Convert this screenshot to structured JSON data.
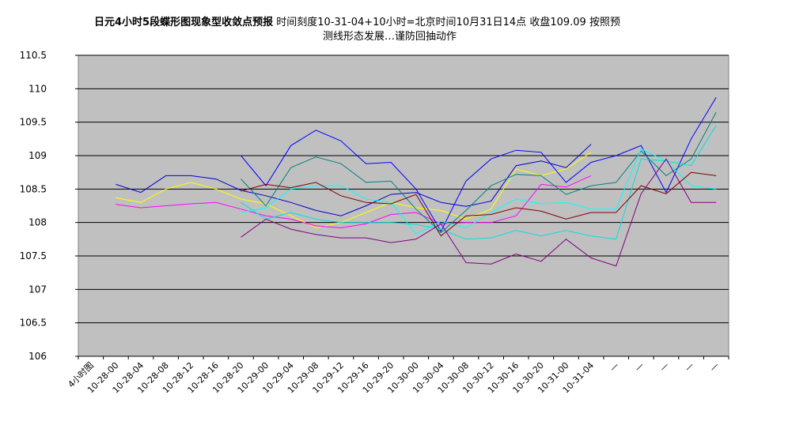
{
  "chart_data": {
    "type": "line",
    "title_bold": "日元4小时5段蝶形图现象型收敛点预报",
    "title_rest": " 时间刻度10-31-04+10小时=北京时间10月31日14点 收盘109.09 按照预",
    "title_line2": "测线形态发展…谨防回抽动作",
    "ylim": [
      106,
      110.5
    ],
    "yticks": [
      "110.5",
      "110",
      "109.5",
      "109",
      "108.5",
      "108",
      "107.5",
      "107",
      "106.5",
      "106"
    ],
    "grid": true,
    "plot_background": "#c0c0c0",
    "categories": [
      "4小时图",
      "10-28-00",
      "10-28-04",
      "10-28-08",
      "10-28-12",
      "10-28-16",
      "10-28-20",
      "10-29-00",
      "10-29-04",
      "10-29-08",
      "10-29-12",
      "10-29-16",
      "10-29-20",
      "10-30-00",
      "10-30-04",
      "10-30-08",
      "10-30-12",
      "10-30-16",
      "10-30-20",
      "10-31-00",
      "10-31-04",
      "—",
      "—",
      "—",
      "—",
      "—"
    ],
    "series": [
      {
        "color": "#0000cc",
        "values": [
          null,
          108.57,
          108.45,
          108.7,
          108.7,
          108.65,
          108.48,
          108.4,
          108.3,
          108.18,
          108.1,
          108.25,
          108.42,
          108.45,
          108.3,
          108.24,
          108.32,
          108.85,
          108.92,
          108.82,
          109.17,
          null,
          null,
          null,
          null,
          null
        ]
      },
      {
        "color": "#ffff00",
        "values": [
          null,
          108.37,
          108.3,
          108.5,
          108.6,
          108.5,
          108.35,
          108.28,
          108.1,
          107.92,
          108.0,
          108.15,
          108.3,
          108.22,
          108.18,
          108.05,
          108.2,
          108.8,
          108.7,
          108.8,
          109.05,
          null,
          null,
          null,
          null,
          null
        ]
      },
      {
        "color": "#ff00ff",
        "values": [
          null,
          108.27,
          108.22,
          108.25,
          108.28,
          108.3,
          108.2,
          108.1,
          108.05,
          107.95,
          107.92,
          107.98,
          108.12,
          108.15,
          107.98,
          108.0,
          108.0,
          108.1,
          108.57,
          108.53,
          108.7,
          null,
          null,
          null,
          null,
          null
        ]
      },
      {
        "color": "#0000ff",
        "values": [
          null,
          null,
          null,
          null,
          null,
          null,
          109.0,
          108.55,
          109.15,
          109.38,
          109.22,
          108.88,
          108.9,
          108.5,
          107.87,
          108.62,
          108.95,
          109.08,
          109.05,
          108.6,
          108.9,
          109.0,
          109.15,
          108.45,
          109.25,
          109.87
        ]
      },
      {
        "color": "#008080",
        "values": [
          null,
          null,
          null,
          null,
          null,
          null,
          108.65,
          108.25,
          108.82,
          108.98,
          108.88,
          108.6,
          108.62,
          108.2,
          107.85,
          108.18,
          108.55,
          108.72,
          108.7,
          108.42,
          108.55,
          108.6,
          109.07,
          108.7,
          108.95,
          109.65
        ]
      },
      {
        "color": "#00ffff",
        "values": [
          null,
          null,
          null,
          null,
          null,
          null,
          108.15,
          108.22,
          108.5,
          108.55,
          108.55,
          108.35,
          108.3,
          107.83,
          108.02,
          107.92,
          108.15,
          108.35,
          108.28,
          108.3,
          108.2,
          108.2,
          109.1,
          108.92,
          108.55,
          108.5
        ]
      },
      {
        "color": "#00e0e0",
        "values": [
          null,
          null,
          null,
          null,
          null,
          null,
          108.3,
          108.05,
          108.15,
          108.05,
          108.0,
          108.0,
          108.0,
          107.97,
          107.9,
          107.75,
          107.77,
          107.88,
          107.8,
          107.88,
          107.8,
          107.75,
          108.95,
          108.92,
          108.85,
          109.45
        ]
      },
      {
        "color": "#800000",
        "values": [
          null,
          null,
          null,
          null,
          null,
          null,
          108.47,
          108.57,
          108.52,
          108.6,
          108.4,
          108.3,
          108.28,
          108.42,
          107.8,
          108.1,
          108.12,
          108.22,
          108.17,
          108.05,
          108.15,
          108.15,
          108.55,
          108.43,
          108.75,
          108.7
        ]
      },
      {
        "color": "#800080",
        "values": [
          null,
          null,
          null,
          null,
          null,
          null,
          107.78,
          108.05,
          107.9,
          107.82,
          107.77,
          107.77,
          107.7,
          107.75,
          107.98,
          107.4,
          107.38,
          107.53,
          107.42,
          107.75,
          107.47,
          107.35,
          108.43,
          108.95,
          108.3,
          108.3
        ]
      }
    ]
  }
}
